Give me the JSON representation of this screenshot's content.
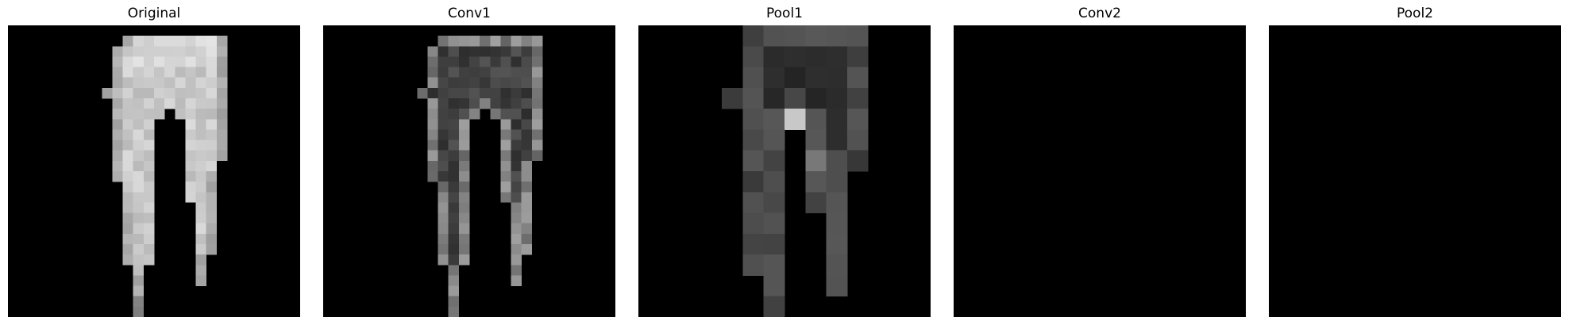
{
  "figure": {
    "panels": [
      {
        "title": "Original",
        "grid": 28
      },
      {
        "title": "Conv1",
        "grid": 28
      },
      {
        "title": "Pool1",
        "grid": 14
      },
      {
        "title": "Conv2",
        "grid": 14
      },
      {
        "title": "Pool2",
        "grid": 7
      }
    ]
  },
  "colors": {
    "background": "#ffffff",
    "image_black": "#000000"
  }
}
